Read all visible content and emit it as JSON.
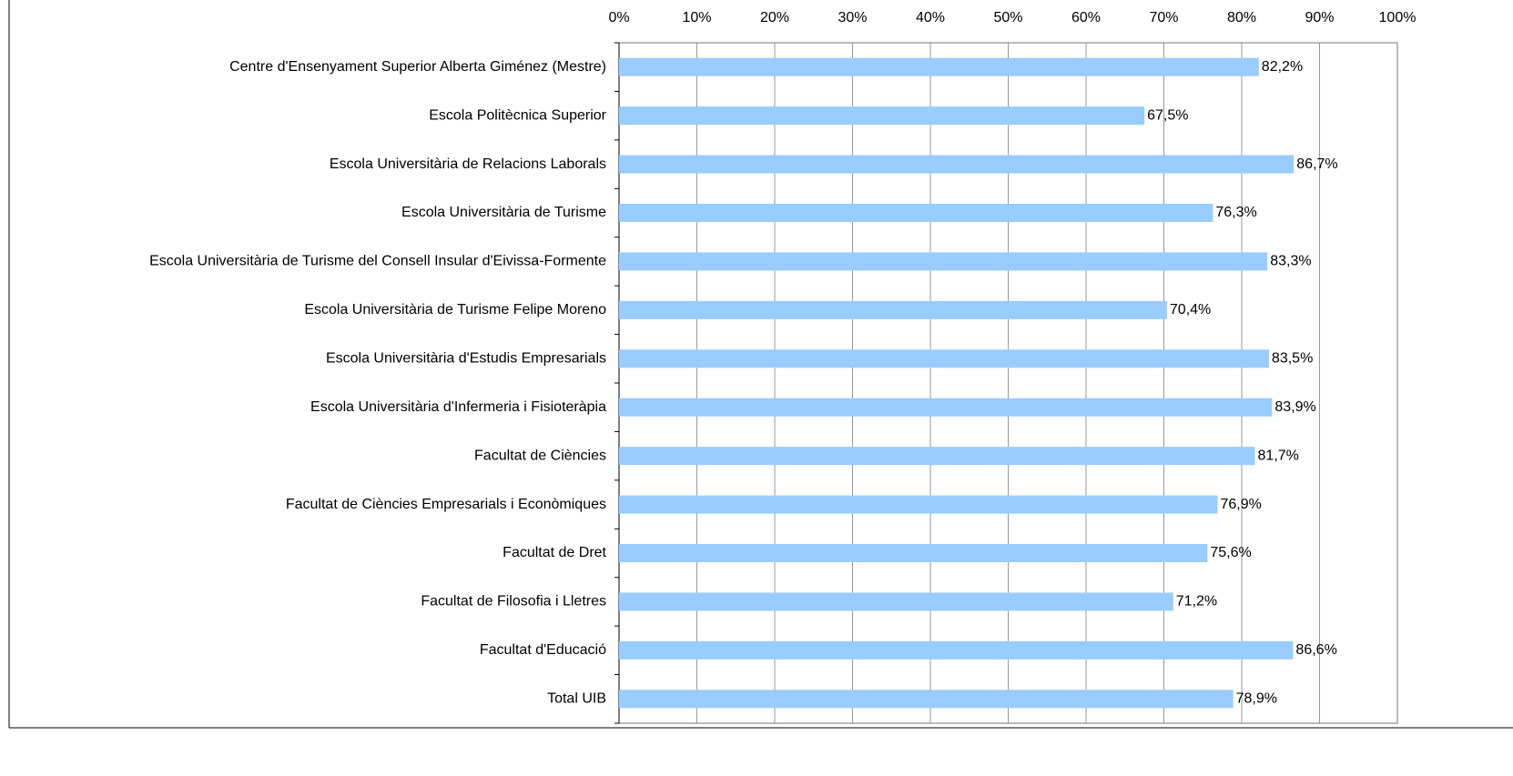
{
  "chart_data": {
    "type": "bar",
    "orientation": "horizontal",
    "categories": [
      "Centre d'Ensenyament Superior Alberta Giménez (Mestre)",
      "Escola Politècnica Superior",
      "Escola Universitària de Relacions Laborals",
      "Escola Universitària de Turisme",
      "Escola Universitària de Turisme del Consell Insular d'Eivissa-Formente",
      "Escola Universitària de Turisme Felipe Moreno",
      "Escola Universitària d'Estudis Empresarials",
      "Escola Universitària d'Infermeria i Fisioteràpia",
      "Facultat de Ciències",
      "Facultat de Ciències Empresarials i Econòmiques",
      "Facultat de Dret",
      "Facultat de Filosofia i Lletres",
      "Facultat d'Educació",
      "Total UIB"
    ],
    "values": [
      82.2,
      67.5,
      86.7,
      76.3,
      83.3,
      70.4,
      83.5,
      83.9,
      81.7,
      76.9,
      75.6,
      71.2,
      86.6,
      78.9
    ],
    "value_labels": [
      "82,2%",
      "67,5%",
      "86,7%",
      "76,3%",
      "83,3%",
      "70,4%",
      "83,5%",
      "83,9%",
      "81,7%",
      "76,9%",
      "75,6%",
      "71,2%",
      "86,6%",
      "78,9%"
    ],
    "color": "#99ccff",
    "xlim": [
      0,
      100
    ],
    "xticks": [
      {
        "value": 0,
        "label": "0%"
      },
      {
        "value": 10,
        "label": "10%"
      },
      {
        "value": 20,
        "label": "20%"
      },
      {
        "value": 30,
        "label": "30%"
      },
      {
        "value": 40,
        "label": "40%"
      },
      {
        "value": 50,
        "label": "50%"
      },
      {
        "value": 60,
        "label": "60%"
      },
      {
        "value": 70,
        "label": "70%"
      },
      {
        "value": 80,
        "label": "80%"
      },
      {
        "value": 90,
        "label": "90%"
      },
      {
        "value": 100,
        "label": "100%"
      }
    ],
    "grid": true
  }
}
